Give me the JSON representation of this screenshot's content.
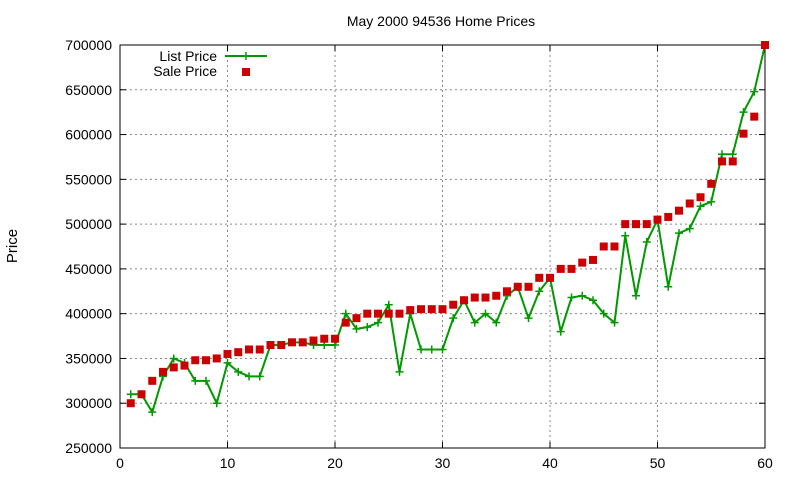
{
  "chart_data": {
    "type": "line",
    "title": "May 2000 94536 Home Prices",
    "xlabel": "",
    "ylabel": "Price",
    "xlim": [
      0,
      60
    ],
    "ylim": [
      250000,
      700000
    ],
    "xticks": [
      0,
      10,
      20,
      30,
      40,
      50,
      60
    ],
    "yticks": [
      250000,
      300000,
      350000,
      400000,
      450000,
      500000,
      550000,
      600000,
      650000,
      700000
    ],
    "grid": true,
    "legend_position": "top-left",
    "series": [
      {
        "name": "List Price",
        "style": "lines+points",
        "marker": "plus",
        "color": "#009900",
        "x": [
          1,
          2,
          3,
          4,
          5,
          6,
          7,
          8,
          9,
          10,
          11,
          12,
          13,
          14,
          15,
          16,
          17,
          18,
          19,
          20,
          21,
          22,
          23,
          24,
          25,
          26,
          27,
          28,
          29,
          30,
          31,
          32,
          33,
          34,
          35,
          36,
          37,
          38,
          39,
          40,
          41,
          42,
          43,
          44,
          45,
          46,
          47,
          48,
          49,
          50,
          51,
          52,
          53,
          54,
          55,
          56,
          57,
          58,
          59,
          60
        ],
        "y": [
          310000,
          310000,
          290000,
          330000,
          350000,
          345000,
          325000,
          325000,
          300000,
          345000,
          335000,
          330000,
          330000,
          365000,
          365000,
          368000,
          368000,
          365000,
          365000,
          365000,
          400000,
          383000,
          385000,
          390000,
          410000,
          335000,
          400000,
          360000,
          360000,
          360000,
          395000,
          415000,
          390000,
          400000,
          390000,
          420000,
          430000,
          395000,
          425000,
          440000,
          380000,
          418000,
          420000,
          415000,
          400000,
          390000,
          487000,
          420000,
          480000,
          505000,
          430000,
          490000,
          495000,
          520000,
          525000,
          578000,
          578000,
          625000,
          648000,
          700000
        ]
      },
      {
        "name": "Sale Price",
        "style": "points",
        "marker": "square",
        "color": "#cc0000",
        "x": [
          1,
          2,
          3,
          4,
          5,
          6,
          7,
          8,
          9,
          10,
          11,
          12,
          13,
          14,
          15,
          16,
          17,
          18,
          19,
          20,
          21,
          22,
          23,
          24,
          25,
          26,
          27,
          28,
          29,
          30,
          31,
          32,
          33,
          34,
          35,
          36,
          37,
          38,
          39,
          40,
          41,
          42,
          43,
          44,
          45,
          46,
          47,
          48,
          49,
          50,
          51,
          52,
          53,
          54,
          55,
          56,
          57,
          58,
          59,
          60
        ],
        "y": [
          300000,
          310000,
          325000,
          335000,
          340000,
          342000,
          348000,
          348000,
          350000,
          355000,
          357000,
          360000,
          360000,
          365000,
          365000,
          368000,
          368000,
          370000,
          372000,
          372000,
          390000,
          395000,
          400000,
          400000,
          400000,
          400000,
          404000,
          405000,
          405000,
          405000,
          410000,
          415000,
          418000,
          418000,
          420000,
          425000,
          430000,
          430000,
          440000,
          440000,
          450000,
          450000,
          457000,
          460000,
          475000,
          475000,
          500000,
          500000,
          500000,
          505000,
          508000,
          515000,
          523000,
          530000,
          545000,
          570000,
          570000,
          601000,
          620000,
          700000
        ]
      }
    ]
  }
}
